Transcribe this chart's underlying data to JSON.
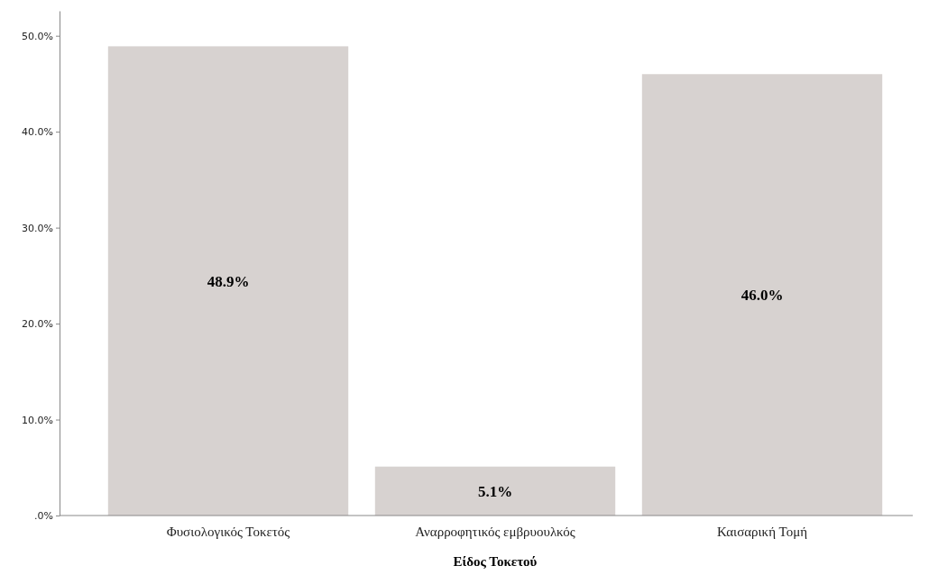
{
  "chart_data": {
    "type": "bar",
    "xlabel": "Είδος Τοκετού",
    "categories": [
      "Φυσιολογικός Τοκετός",
      "Αναρροφητικός εμβρυουλκός",
      "Καισαρική Τομή"
    ],
    "values": [
      48.9,
      5.1,
      46.0
    ],
    "value_labels": [
      "48.9%",
      "5.1%",
      "46.0%"
    ],
    "color": "#d7d2d0",
    "ylim": [
      0,
      52.6
    ],
    "yticks": [
      {
        "value": 0,
        "label": ".0%"
      },
      {
        "value": 10,
        "label": "10.0%"
      },
      {
        "value": 20,
        "label": "20.0%"
      },
      {
        "value": 30,
        "label": "30.0%"
      },
      {
        "value": 40,
        "label": "40.0%"
      },
      {
        "value": 50,
        "label": "50.0%"
      }
    ],
    "grid": false
  }
}
